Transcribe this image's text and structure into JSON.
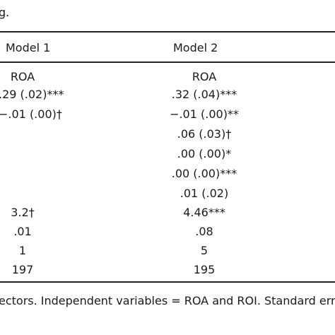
{
  "caption_fragment": "g.",
  "columns": {
    "model1": "Model 1",
    "model2": "Model 2"
  },
  "rows": [
    {
      "model1": "ROA",
      "model2": "ROA"
    },
    {
      "model1": ".29 (.02)***",
      "model2": ".32 (.04)***"
    },
    {
      "model1": "−.01 (.00)†",
      "model2": "−.01 (.00)**"
    },
    {
      "model1": "",
      "model2": ".06 (.03)†"
    },
    {
      "model1": "",
      "model2": ".00 (.00)*"
    },
    {
      "model1": "",
      "model2": ".00 (.00)***"
    },
    {
      "model1": "",
      "model2": ".01 (.02)"
    },
    {
      "model1": "3.2†",
      "model2": "4.46***"
    },
    {
      "model1": ".01",
      "model2": ".08"
    },
    {
      "model1": "1",
      "model2": "5"
    },
    {
      "model1": "197",
      "model2": "195"
    }
  ],
  "note_fragment": "ectors. Independent variables = ROA and ROI. Standard error"
}
